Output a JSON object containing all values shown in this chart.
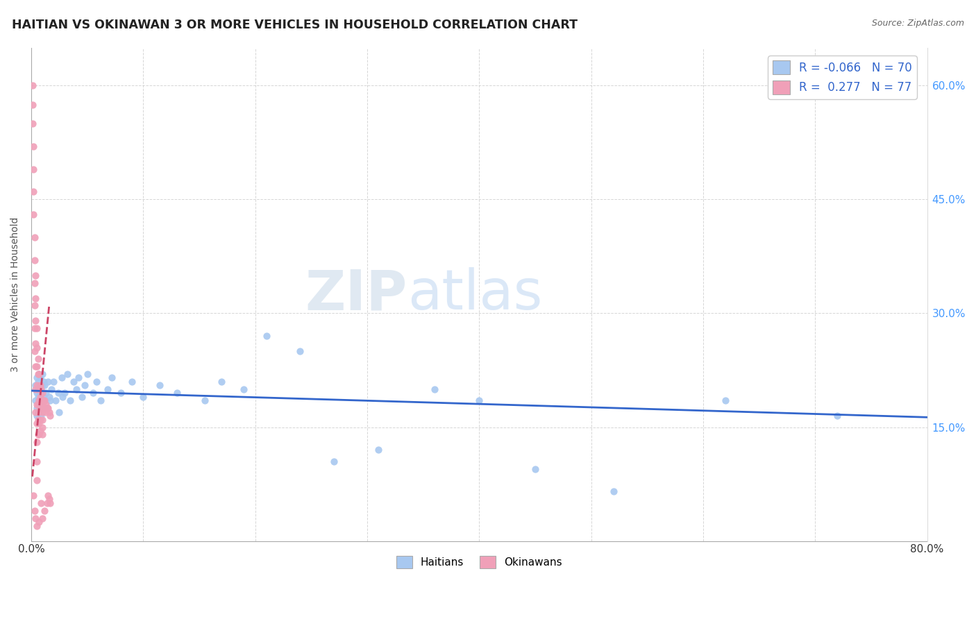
{
  "title": "HAITIAN VS OKINAWAN 3 OR MORE VEHICLES IN HOUSEHOLD CORRELATION CHART",
  "source": "Source: ZipAtlas.com",
  "ylabel_text": "3 or more Vehicles in Household",
  "xlim": [
    0.0,
    0.8
  ],
  "ylim": [
    0.0,
    0.65
  ],
  "xticks": [
    0.0,
    0.1,
    0.2,
    0.3,
    0.4,
    0.5,
    0.6,
    0.7,
    0.8
  ],
  "xticklabels": [
    "0.0%",
    "",
    "",
    "",
    "",
    "",
    "",
    "",
    "80.0%"
  ],
  "yticks": [
    0.0,
    0.15,
    0.3,
    0.45,
    0.6
  ],
  "yticklabels_right": [
    "",
    "15.0%",
    "30.0%",
    "45.0%",
    "60.0%"
  ],
  "legend_labels": [
    "Haitians",
    "Okinawans"
  ],
  "R_haitian": -0.066,
  "N_haitian": 70,
  "R_okinawan": 0.277,
  "N_okinawan": 77,
  "haitian_color": "#a8c8f0",
  "okinawan_color": "#f0a0b8",
  "haitian_line_color": "#3366cc",
  "okinawan_line_color": "#cc4466",
  "watermark_zip": "ZIP",
  "watermark_atlas": "atlas",
  "background_color": "#ffffff",
  "haitian_x": [
    0.004,
    0.004,
    0.005,
    0.005,
    0.005,
    0.005,
    0.006,
    0.006,
    0.006,
    0.007,
    0.007,
    0.007,
    0.008,
    0.008,
    0.008,
    0.009,
    0.009,
    0.009,
    0.01,
    0.01,
    0.01,
    0.01,
    0.011,
    0.011,
    0.012,
    0.012,
    0.013,
    0.014,
    0.015,
    0.016,
    0.017,
    0.018,
    0.02,
    0.022,
    0.024,
    0.025,
    0.027,
    0.028,
    0.03,
    0.032,
    0.035,
    0.038,
    0.04,
    0.042,
    0.045,
    0.048,
    0.05,
    0.055,
    0.058,
    0.062,
    0.068,
    0.072,
    0.08,
    0.09,
    0.1,
    0.115,
    0.13,
    0.155,
    0.17,
    0.19,
    0.21,
    0.24,
    0.27,
    0.31,
    0.36,
    0.4,
    0.45,
    0.52,
    0.62,
    0.72
  ],
  "haitian_y": [
    0.185,
    0.205,
    0.175,
    0.195,
    0.215,
    0.165,
    0.19,
    0.21,
    0.17,
    0.185,
    0.2,
    0.22,
    0.175,
    0.195,
    0.215,
    0.18,
    0.2,
    0.165,
    0.185,
    0.205,
    0.175,
    0.22,
    0.19,
    0.21,
    0.185,
    0.205,
    0.195,
    0.175,
    0.21,
    0.19,
    0.185,
    0.2,
    0.21,
    0.185,
    0.195,
    0.17,
    0.215,
    0.19,
    0.195,
    0.22,
    0.185,
    0.21,
    0.2,
    0.215,
    0.19,
    0.205,
    0.22,
    0.195,
    0.21,
    0.185,
    0.2,
    0.215,
    0.195,
    0.21,
    0.19,
    0.205,
    0.195,
    0.185,
    0.21,
    0.2,
    0.27,
    0.25,
    0.105,
    0.12,
    0.2,
    0.185,
    0.095,
    0.065,
    0.185,
    0.165
  ],
  "okinawan_x": [
    0.001,
    0.001,
    0.001,
    0.002,
    0.002,
    0.002,
    0.002,
    0.002,
    0.003,
    0.003,
    0.003,
    0.003,
    0.003,
    0.003,
    0.003,
    0.004,
    0.004,
    0.004,
    0.004,
    0.004,
    0.004,
    0.004,
    0.004,
    0.005,
    0.005,
    0.005,
    0.005,
    0.005,
    0.005,
    0.005,
    0.005,
    0.005,
    0.005,
    0.006,
    0.006,
    0.006,
    0.006,
    0.006,
    0.006,
    0.007,
    0.007,
    0.007,
    0.007,
    0.007,
    0.007,
    0.007,
    0.008,
    0.008,
    0.008,
    0.008,
    0.008,
    0.009,
    0.009,
    0.009,
    0.009,
    0.01,
    0.01,
    0.01,
    0.01,
    0.01,
    0.01,
    0.01,
    0.011,
    0.011,
    0.012,
    0.012,
    0.012,
    0.013,
    0.013,
    0.014,
    0.014,
    0.015,
    0.015,
    0.016,
    0.016,
    0.017,
    0.017
  ],
  "okinawan_y": [
    0.6,
    0.575,
    0.55,
    0.52,
    0.49,
    0.46,
    0.43,
    0.06,
    0.4,
    0.37,
    0.34,
    0.31,
    0.28,
    0.25,
    0.04,
    0.35,
    0.32,
    0.29,
    0.26,
    0.23,
    0.2,
    0.17,
    0.03,
    0.28,
    0.255,
    0.23,
    0.205,
    0.18,
    0.155,
    0.13,
    0.105,
    0.08,
    0.02,
    0.24,
    0.22,
    0.2,
    0.18,
    0.16,
    0.14,
    0.22,
    0.2,
    0.185,
    0.17,
    0.155,
    0.14,
    0.025,
    0.205,
    0.19,
    0.175,
    0.16,
    0.145,
    0.2,
    0.185,
    0.175,
    0.05,
    0.195,
    0.18,
    0.17,
    0.16,
    0.15,
    0.14,
    0.03,
    0.185,
    0.175,
    0.185,
    0.175,
    0.04,
    0.18,
    0.17,
    0.175,
    0.05,
    0.175,
    0.06,
    0.17,
    0.055,
    0.165,
    0.05
  ],
  "haitian_line_x": [
    0.0,
    0.8
  ],
  "haitian_line_y": [
    0.198,
    0.163
  ],
  "okinawan_line_x": [
    0.001,
    0.016
  ],
  "okinawan_line_y": [
    0.085,
    0.31
  ]
}
